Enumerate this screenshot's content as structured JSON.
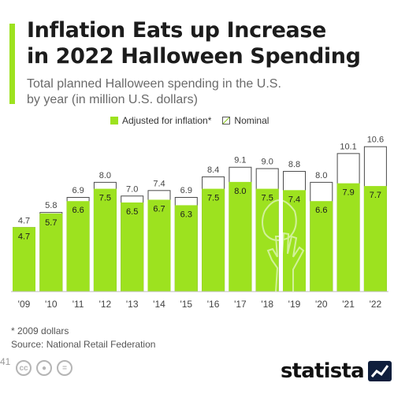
{
  "title": "Inflation Eats up Increase\nin 2022 Halloween Spending",
  "subtitle": "Total planned Halloween spending in the U.S.\nby year (in million U.S. dollars)",
  "legend": {
    "adjusted": "Adjusted for inflation*",
    "nominal": "Nominal"
  },
  "footnote": "* 2009 dollars",
  "source": "Source: National Retail Federation",
  "edge_number": "41",
  "logo": "statista",
  "colors": {
    "accent": "#9de21f",
    "bar": "#9de21f",
    "bar_label": "#1c1c1c",
    "nominal_outline": "#4a4a4a"
  },
  "icons": [
    "creative-commons-icon",
    "attribution-icon",
    "no-derivatives-icon"
  ],
  "chart_data": {
    "type": "bar",
    "categories": [
      "'09",
      "'10",
      "'11",
      "'12",
      "'13",
      "'14",
      "'15",
      "'16",
      "'17",
      "'18",
      "'19",
      "'20",
      "'21",
      "'22"
    ],
    "series": [
      {
        "name": "Adjusted for inflation*",
        "values": [
          4.7,
          5.7,
          6.6,
          7.5,
          6.5,
          6.7,
          6.3,
          7.5,
          8.0,
          7.5,
          7.4,
          6.6,
          7.9,
          7.7
        ]
      },
      {
        "name": "Nominal",
        "values": [
          4.7,
          5.8,
          6.9,
          8.0,
          7.0,
          7.4,
          6.9,
          8.4,
          9.1,
          9.0,
          8.8,
          8.0,
          10.1,
          10.6
        ]
      }
    ],
    "ylim": [
      0,
      11.5
    ],
    "grid": false,
    "legend_position": "top"
  }
}
